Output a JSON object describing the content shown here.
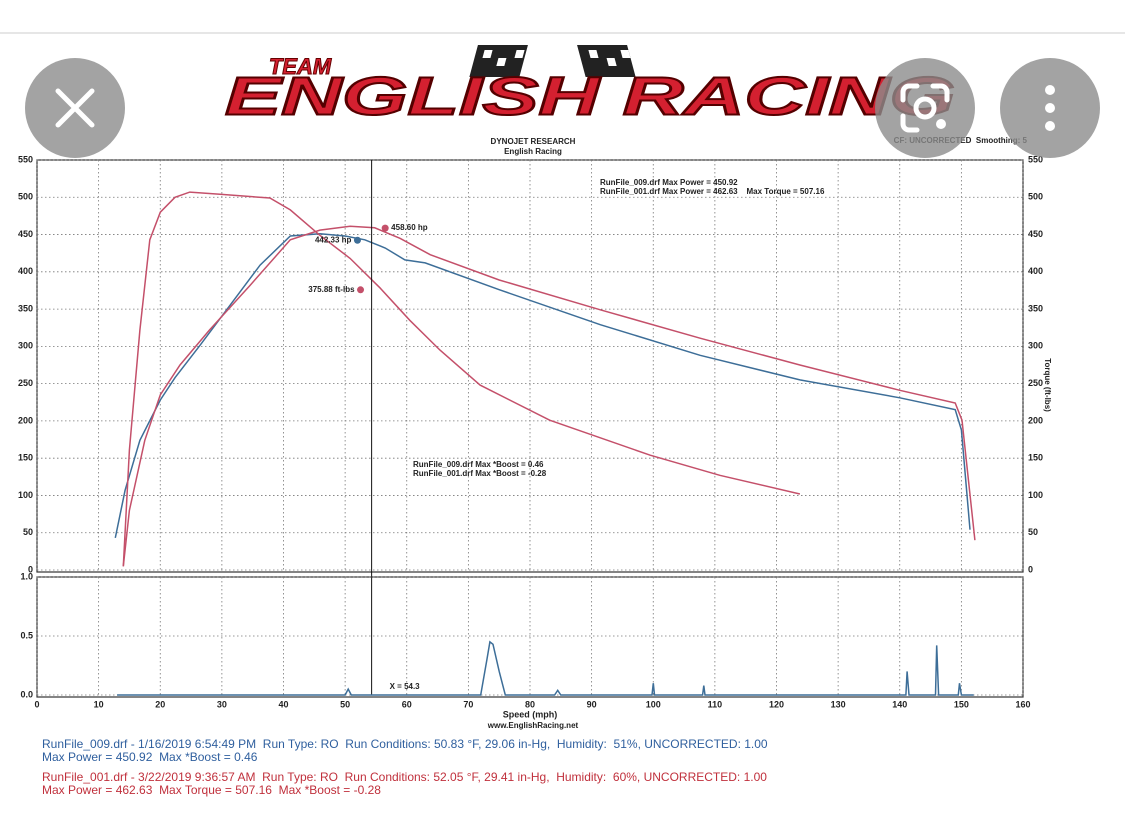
{
  "header": {
    "logo_team": "TEAM",
    "logo_name": "ENGLISH RACING",
    "title": "DYNOJET RESEARCH",
    "subtitle": "English Racing",
    "settings": "CF: UNCORRECTED  Smoothing: 5"
  },
  "chart_data": [
    {
      "type": "line",
      "y2_label": "Torque (ft-lbs)",
      "xlim": [
        0,
        160
      ],
      "xticks": [
        0,
        10,
        20,
        30,
        40,
        50,
        60,
        70,
        80,
        90,
        100,
        110,
        120,
        130,
        140,
        150,
        160
      ],
      "ylim": [
        0,
        550
      ],
      "yticks": [
        0,
        50,
        100,
        150,
        200,
        250,
        300,
        350,
        400,
        450,
        500,
        550
      ],
      "grid": true,
      "series": [
        {
          "color": "#3d6e98",
          "x": [
            12.7,
            14.3,
            16.7,
            20,
            22.4,
            26.5,
            31.3,
            36.2,
            41.1,
            45.9,
            50,
            53.2,
            56.5,
            59.7,
            63,
            75,
            91.4,
            107.6,
            123.8,
            140,
            149,
            150,
            151.4
          ],
          "values": [
            43,
            107,
            174,
            228,
            258,
            302,
            355,
            409,
            448,
            451,
            448,
            443,
            432,
            416,
            412,
            376,
            329,
            288,
            255,
            231,
            215,
            188,
            54
          ]
        },
        {
          "color": "#c4506a",
          "x": [
            14,
            15,
            17.5,
            20,
            23.2,
            28,
            34.6,
            41.1,
            45.9,
            50.8,
            54.8,
            58.9,
            63.8,
            75,
            91.4,
            107.6,
            123.8,
            140,
            149,
            150.1,
            152.2
          ],
          "values": [
            5,
            80,
            174,
            235,
            275,
            322,
            382,
            443,
            456,
            461,
            459,
            445,
            423,
            389,
            349,
            311,
            275,
            241,
            224,
            201,
            40
          ]
        },
        {
          "color": "#c4506a",
          "x": [
            14,
            15,
            16.7,
            18.3,
            20,
            22.4,
            24.8,
            29.7,
            37.8,
            41.1,
            45.9,
            50.8,
            55.7,
            60.5,
            65.4,
            71.9,
            83.2,
            99.5,
            110.8,
            123.8
          ],
          "values": [
            5,
            161,
            322,
            443,
            480,
            500,
            507,
            504,
            499,
            483,
            449,
            418,
            378,
            335,
            295,
            248,
            201,
            154,
            127,
            102
          ]
        }
      ],
      "annotations": [
        {
          "text": "442.33 hp",
          "x": 52,
          "y": 442.33,
          "color": "#3d6e98"
        },
        {
          "text": "458.60 hp",
          "x": 56.5,
          "y": 458.6,
          "color": "#c4506a"
        },
        {
          "text": "375.88 ft-lbs",
          "x": 52.5,
          "y": 375.88,
          "color": "#c4506a"
        }
      ],
      "notes": [
        "RunFile_009.drf Max Power = 450.92",
        "RunFile_001.drf Max Power = 462.63    Max Torque = 507.16",
        "RunFile_009.drf Max *Boost = 0.46",
        "RunFile_001.drf Max *Boost = -0.28"
      ],
      "cursor": {
        "x": 54.3,
        "label": "X = 54.3"
      }
    },
    {
      "type": "line",
      "x_label": "Speed (mph)",
      "xlim": [
        0,
        160
      ],
      "xticks": [
        0,
        10,
        20,
        30,
        40,
        50,
        60,
        70,
        80,
        90,
        100,
        110,
        120,
        130,
        140,
        150,
        160
      ],
      "ylim": [
        0,
        1
      ],
      "yticks": [
        {
          "value": 0,
          "label": "0.0"
        },
        0.5,
        {
          "value": 1,
          "label": "1.0"
        }
      ],
      "grid": true,
      "series": [
        {
          "color": "#3d6e98",
          "x": [
            13,
            50,
            50.5,
            51,
            72,
            73,
            73.5,
            74,
            75,
            76,
            84,
            84.5,
            85,
            99.8,
            100,
            100.2,
            108,
            108.2,
            108.4,
            141,
            141.2,
            141.5,
            145.8,
            146,
            146.3,
            149.5,
            149.7,
            150,
            152
          ],
          "values": [
            0,
            0,
            0.05,
            0,
            0,
            0.3,
            0.45,
            0.43,
            0.2,
            0,
            0,
            0.04,
            0,
            0,
            0.1,
            0,
            0,
            0.08,
            0,
            0,
            0.2,
            0,
            0,
            0.42,
            0,
            0,
            0.1,
            0,
            0
          ]
        }
      ]
    }
  ],
  "footer": {
    "website": "www.EnglishRacing.net",
    "runs": [
      {
        "line1": "RunFile_009.drf - 1/16/2019 6:54:49 PM  Run Type: RO  Run Conditions: 50.83 °F, 29.06 in-Hg,  Humidity:  51%, UNCORRECTED: 1.00",
        "line2": "Max Power = 450.92  Max *Boost = 0.46",
        "color": "#2f5f9e"
      },
      {
        "line1": "RunFile_001.drf - 3/22/2019 9:36:57 AM  Run Type: RO  Run Conditions: 52.05 °F, 29.41 in-Hg,  Humidity:  60%, UNCORRECTED: 1.00",
        "line2": "Max Power = 462.63  Max Torque = 507.16  Max *Boost = -0.28",
        "color": "#c0303c"
      }
    ]
  }
}
